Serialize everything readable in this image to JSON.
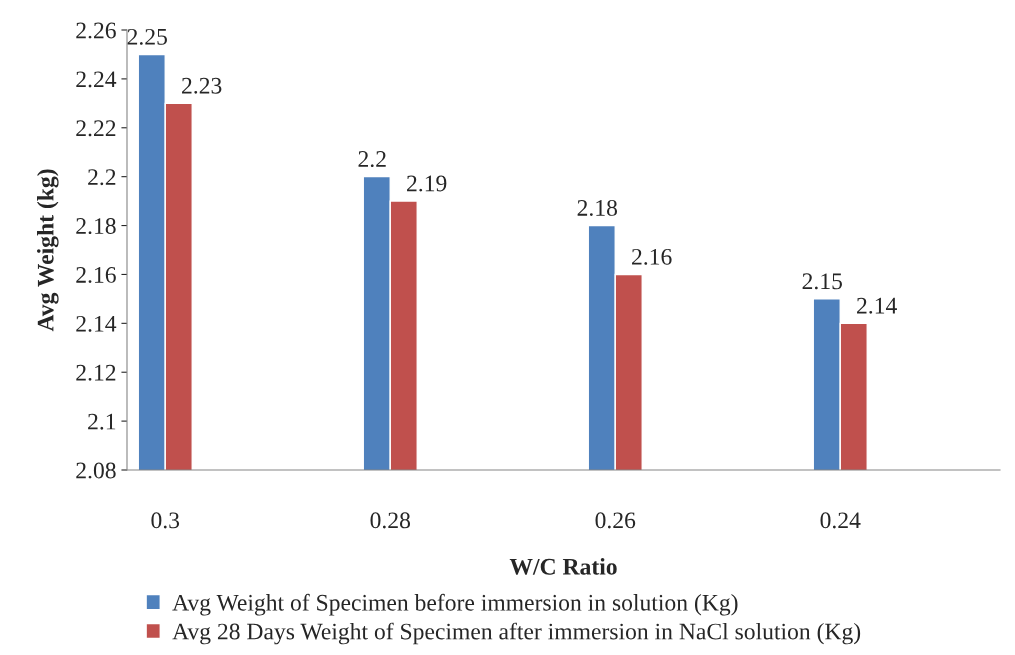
{
  "chart_data": {
    "type": "bar",
    "xlabel": "W/C Ratio",
    "ylabel": "Avg Weight (kg)",
    "categories": [
      "0.3",
      "0.28",
      "0.26",
      "0.24"
    ],
    "series": [
      {
        "name": "Avg Weight of Specimen before immersion in solution (Kg)",
        "color": "#4f81bd",
        "values": [
          2.25,
          2.2,
          2.18,
          2.15
        ]
      },
      {
        "name": "Avg 28 Days Weight of Specimen after immersion in NaCl solution (Kg)",
        "color": "#c0504d",
        "values": [
          2.23,
          2.19,
          2.16,
          2.14
        ]
      }
    ],
    "ylim": [
      2.08,
      2.26
    ],
    "yticks": [
      2.08,
      2.1,
      2.12,
      2.14,
      2.16,
      2.18,
      2.2,
      2.22,
      2.24,
      2.26
    ],
    "data_labels": true,
    "grid": false,
    "legend": "bottom"
  }
}
